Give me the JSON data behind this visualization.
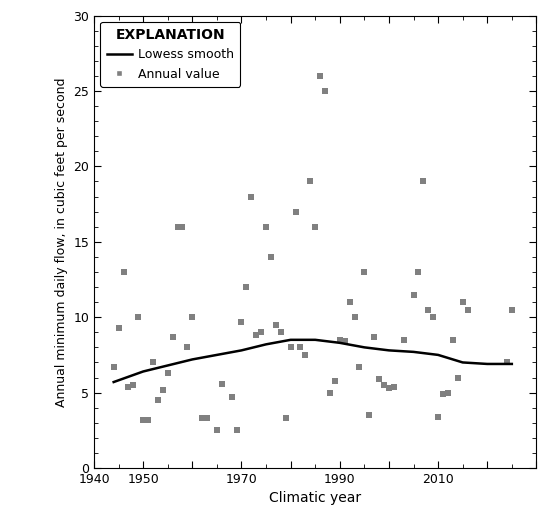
{
  "title": "",
  "xlabel": "Climatic year",
  "ylabel": "Annual minimum daily flow, in cubic feet per second",
  "xlim": [
    1940,
    2030
  ],
  "ylim": [
    0,
    30
  ],
  "xticks": [
    1940,
    1950,
    1960,
    1970,
    1980,
    1990,
    2000,
    2010,
    2020,
    2030
  ],
  "xtick_labels": [
    "1940",
    "1950",
    "",
    "1970",
    "",
    "1990",
    "",
    "2010",
    "",
    ""
  ],
  "yticks": [
    0,
    5,
    10,
    15,
    20,
    25,
    30
  ],
  "scatter_color": "#808080",
  "line_color": "#000000",
  "scatter_points": [
    [
      1944,
      6.7
    ],
    [
      1945,
      9.3
    ],
    [
      1946,
      13.0
    ],
    [
      1947,
      5.4
    ],
    [
      1948,
      5.5
    ],
    [
      1949,
      10.0
    ],
    [
      1950,
      3.2
    ],
    [
      1951,
      3.2
    ],
    [
      1952,
      7.0
    ],
    [
      1953,
      4.5
    ],
    [
      1954,
      5.2
    ],
    [
      1955,
      6.3
    ],
    [
      1956,
      8.7
    ],
    [
      1957,
      16.0
    ],
    [
      1958,
      16.0
    ],
    [
      1959,
      8.0
    ],
    [
      1960,
      10.0
    ],
    [
      1962,
      3.3
    ],
    [
      1963,
      3.3
    ],
    [
      1965,
      2.5
    ],
    [
      1966,
      5.6
    ],
    [
      1968,
      4.7
    ],
    [
      1969,
      2.5
    ],
    [
      1970,
      9.7
    ],
    [
      1971,
      12.0
    ],
    [
      1972,
      18.0
    ],
    [
      1973,
      8.8
    ],
    [
      1974,
      9.0
    ],
    [
      1975,
      16.0
    ],
    [
      1976,
      14.0
    ],
    [
      1977,
      9.5
    ],
    [
      1978,
      9.0
    ],
    [
      1979,
      3.3
    ],
    [
      1980,
      8.0
    ],
    [
      1981,
      17.0
    ],
    [
      1982,
      8.0
    ],
    [
      1983,
      7.5
    ],
    [
      1984,
      19.0
    ],
    [
      1985,
      16.0
    ],
    [
      1986,
      26.0
    ],
    [
      1987,
      25.0
    ],
    [
      1988,
      5.0
    ],
    [
      1989,
      5.8
    ],
    [
      1990,
      8.5
    ],
    [
      1991,
      8.4
    ],
    [
      1992,
      11.0
    ],
    [
      1993,
      10.0
    ],
    [
      1994,
      6.7
    ],
    [
      1995,
      13.0
    ],
    [
      1996,
      3.5
    ],
    [
      1997,
      8.7
    ],
    [
      1998,
      5.9
    ],
    [
      1999,
      5.5
    ],
    [
      2000,
      5.3
    ],
    [
      2001,
      5.4
    ],
    [
      2003,
      8.5
    ],
    [
      2005,
      11.5
    ],
    [
      2006,
      13.0
    ],
    [
      2007,
      19.0
    ],
    [
      2008,
      10.5
    ],
    [
      2009,
      10.0
    ],
    [
      2010,
      3.4
    ],
    [
      2011,
      4.9
    ],
    [
      2012,
      5.0
    ],
    [
      2013,
      8.5
    ],
    [
      2014,
      6.0
    ],
    [
      2015,
      11.0
    ],
    [
      2016,
      10.5
    ],
    [
      2024,
      7.0
    ],
    [
      2025,
      10.5
    ]
  ],
  "lowess_points": [
    [
      1944,
      5.7
    ],
    [
      1950,
      6.4
    ],
    [
      1960,
      7.2
    ],
    [
      1970,
      7.8
    ],
    [
      1975,
      8.2
    ],
    [
      1980,
      8.5
    ],
    [
      1985,
      8.5
    ],
    [
      1990,
      8.3
    ],
    [
      1995,
      8.0
    ],
    [
      2000,
      7.8
    ],
    [
      2005,
      7.7
    ],
    [
      2010,
      7.5
    ],
    [
      2015,
      7.0
    ],
    [
      2020,
      6.9
    ],
    [
      2025,
      6.9
    ]
  ],
  "legend_title": "EXPLANATION",
  "legend_line_label": "Lowess smooth",
  "legend_scatter_label": "Annual value",
  "figwidth": 5.53,
  "figheight": 5.2,
  "dpi": 100
}
